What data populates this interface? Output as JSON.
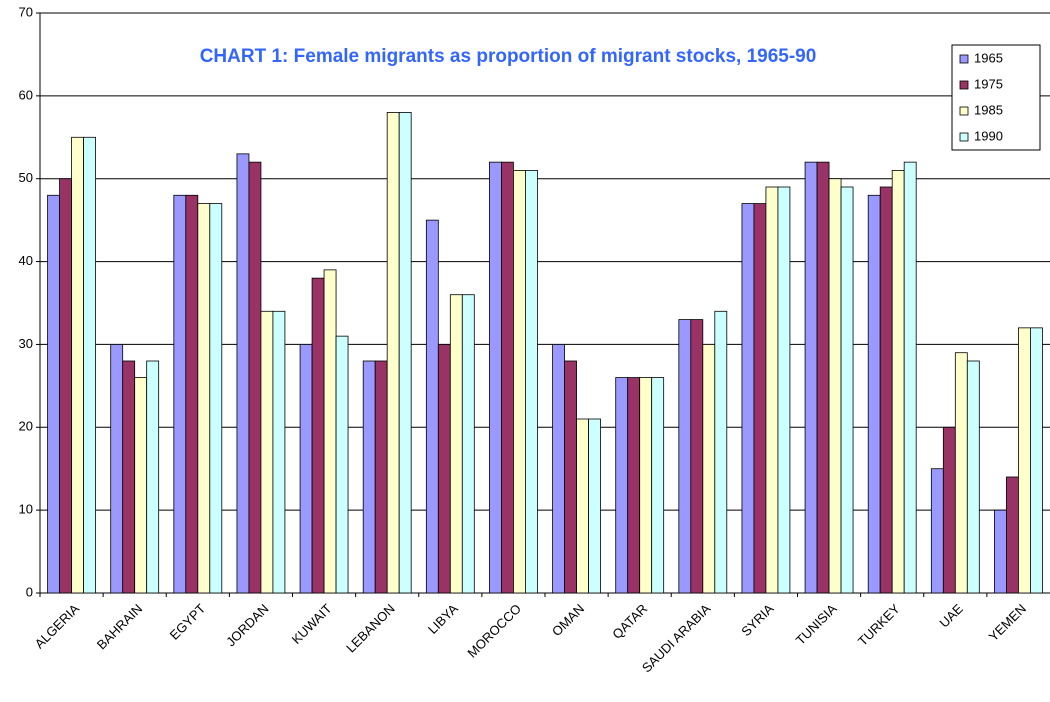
{
  "chart_data": {
    "type": "bar",
    "title": "CHART 1: Female migrants as proportion of migrant stocks, 1965-90",
    "categories": [
      "ALGERIA",
      "BAHRAIN",
      "EGYPT",
      "JORDAN",
      "KUWAIT",
      "LEBANON",
      "LIBYA",
      "MOROCCO",
      "OMAN",
      "QATAR",
      "SAUDI ARABIA",
      "SYRIA",
      "TUNISIA",
      "TURKEY",
      "UAE",
      "YEMEN"
    ],
    "series": [
      {
        "name": "1965",
        "color": "#9999ff",
        "values": [
          48,
          30,
          48,
          53,
          30,
          28,
          45,
          52,
          30,
          26,
          33,
          47,
          52,
          48,
          15,
          10
        ]
      },
      {
        "name": "1975",
        "color": "#993366",
        "values": [
          50,
          28,
          48,
          52,
          38,
          28,
          30,
          52,
          28,
          26,
          33,
          47,
          52,
          49,
          20,
          14
        ]
      },
      {
        "name": "1985",
        "color": "#ffffcc",
        "values": [
          55,
          26,
          47,
          34,
          39,
          58,
          36,
          51,
          21,
          26,
          30,
          49,
          50,
          51,
          29,
          32
        ]
      },
      {
        "name": "1990",
        "color": "#ccffff",
        "values": [
          55,
          28,
          47,
          34,
          31,
          58,
          36,
          51,
          21,
          26,
          34,
          49,
          49,
          52,
          28,
          32
        ]
      }
    ],
    "ylim": [
      0,
      70
    ],
    "yticks": [
      0,
      10,
      20,
      30,
      40,
      50,
      60,
      70
    ],
    "grid": true,
    "legend": "top-right"
  }
}
